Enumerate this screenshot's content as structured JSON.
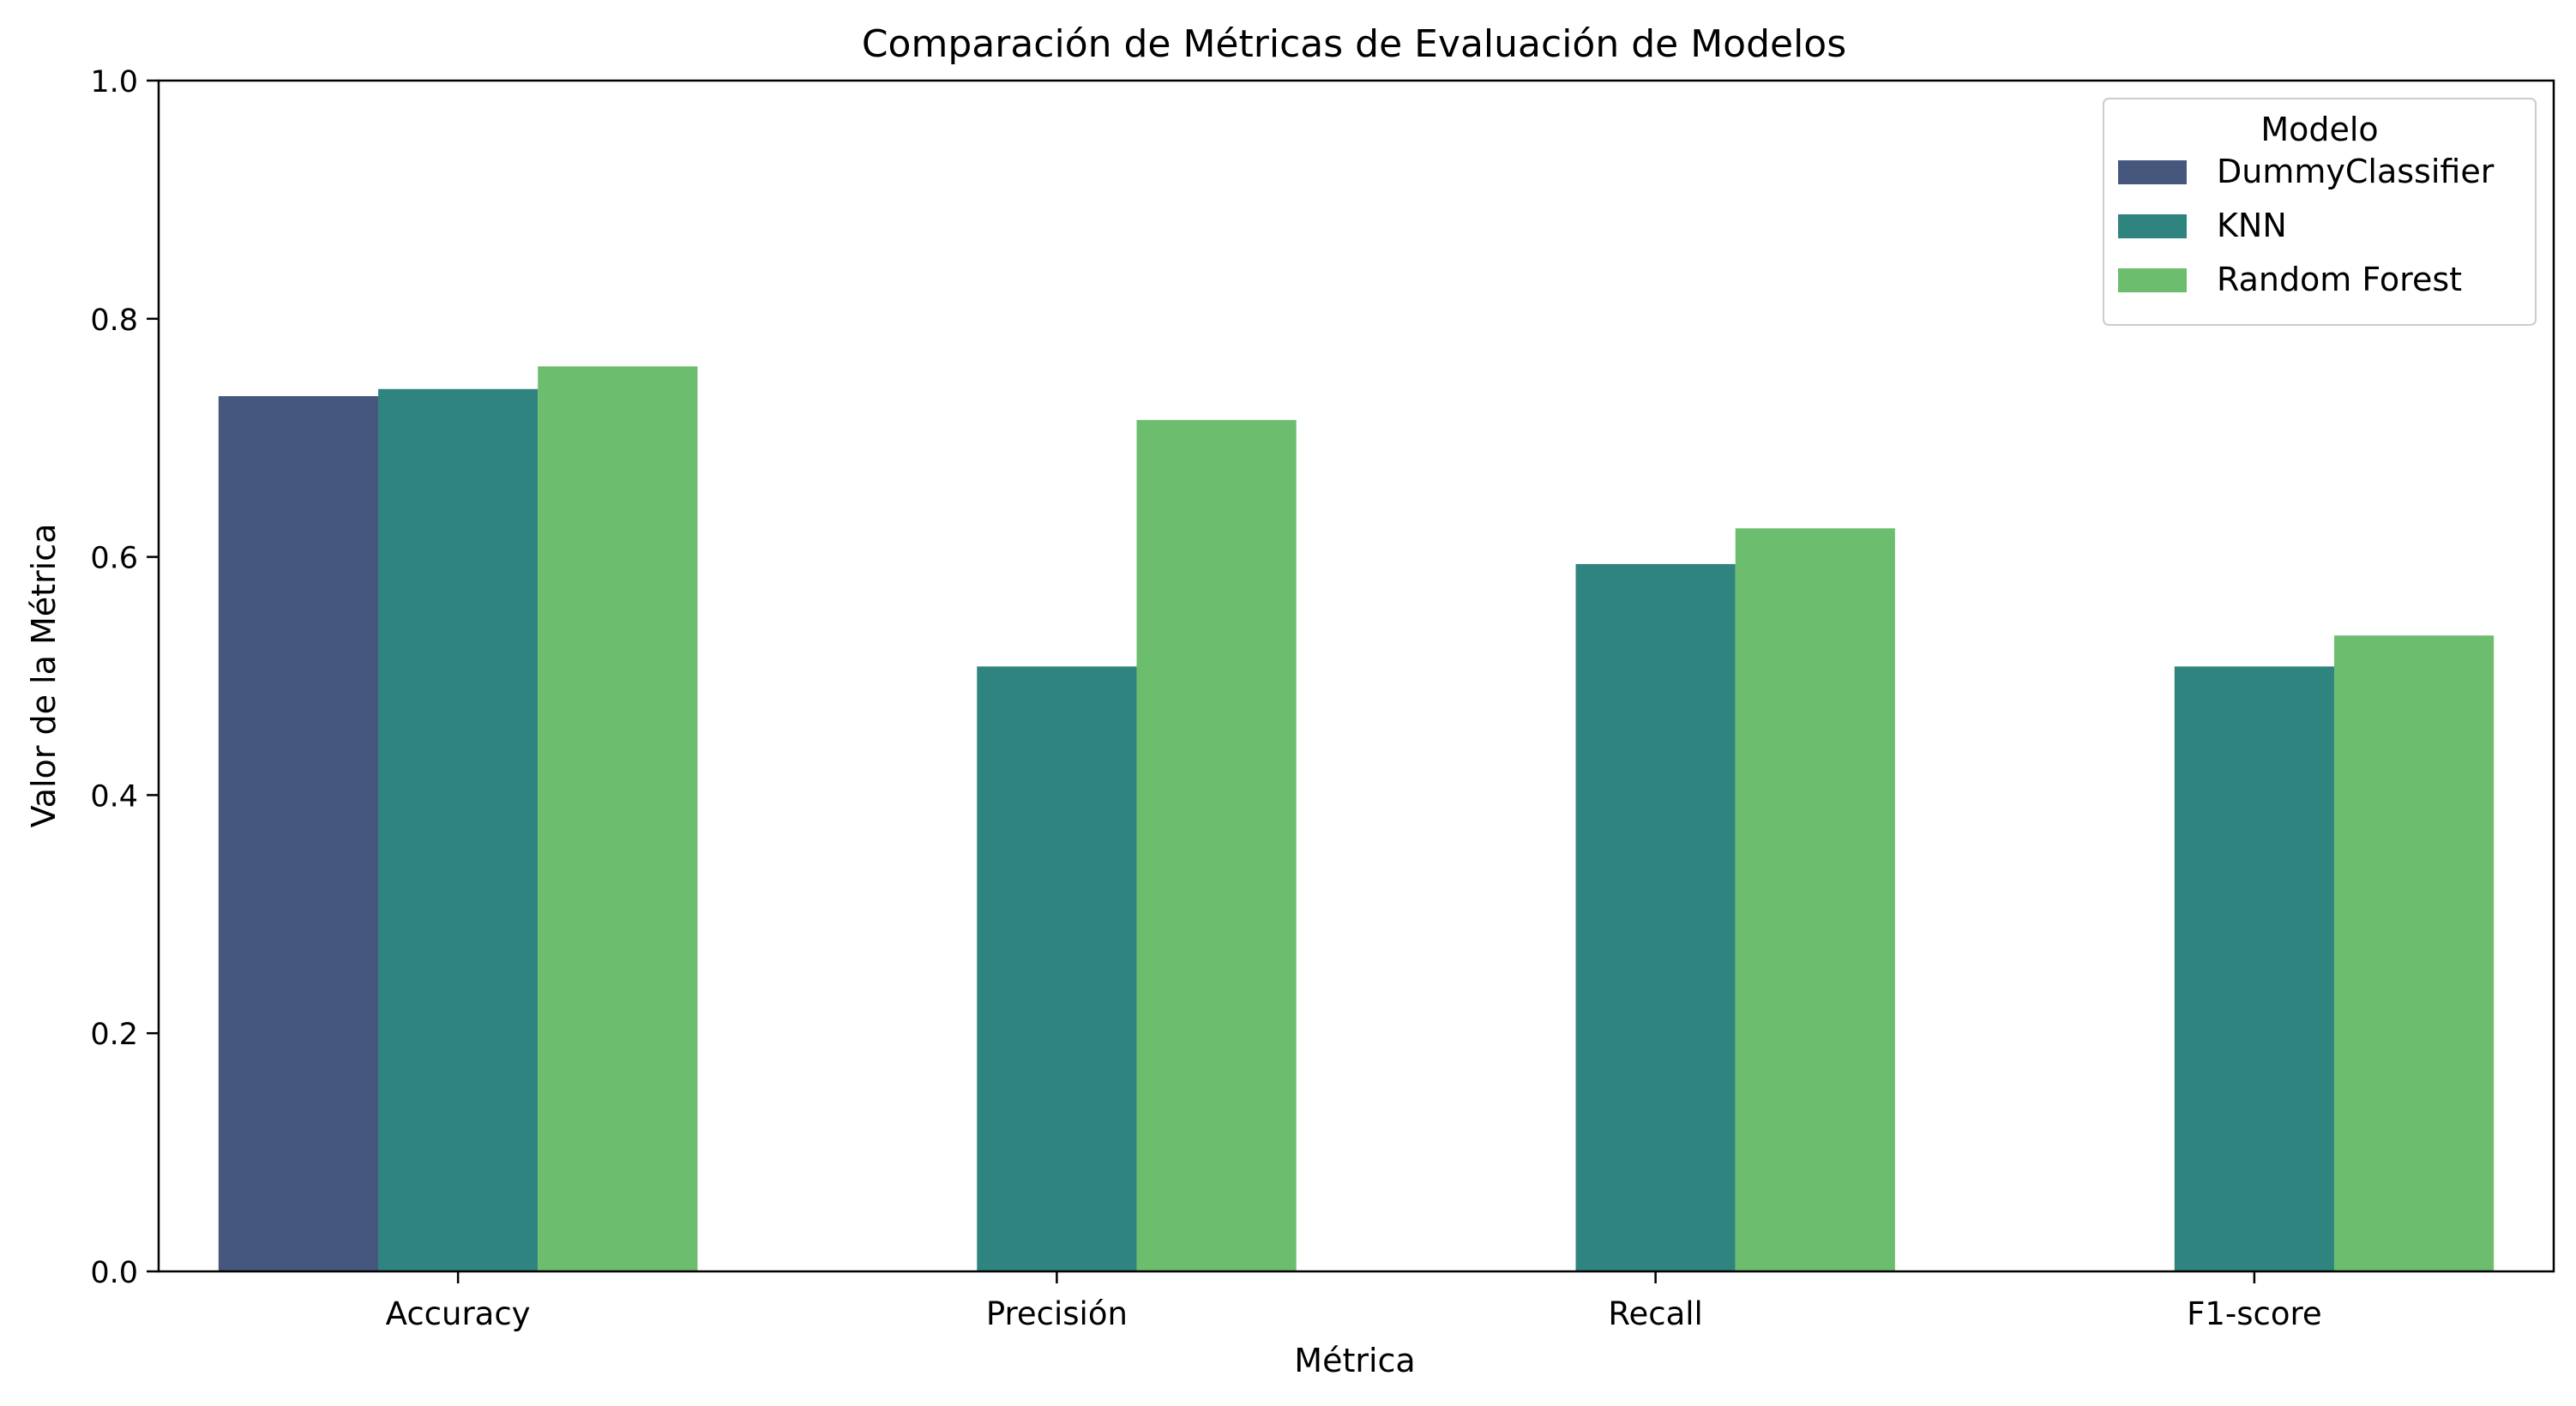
{
  "chart_data": {
    "type": "bar",
    "title": "Comparación de Métricas de Evaluación de Modelos",
    "xlabel": "Métrica",
    "ylabel": "Valor de la Métrica",
    "ylim": [
      0,
      1.0
    ],
    "yticks": [
      "0.0",
      "0.2",
      "0.4",
      "0.6",
      "0.8",
      "1.0"
    ],
    "grid": false,
    "legend": {
      "title": "Modelo",
      "position": "top-right"
    },
    "categories": [
      "Accuracy",
      "Precisión",
      "Recall",
      "F1-score"
    ],
    "series": [
      {
        "name": "DummyClassifier",
        "color": "#46577e",
        "values": [
          0.735,
          0.0,
          0.0,
          0.0
        ]
      },
      {
        "name": "KNN",
        "color": "#2f847f",
        "values": [
          0.741,
          0.508,
          0.594,
          0.508
        ]
      },
      {
        "name": "Random Forest",
        "color": "#6dbd6e",
        "values": [
          0.76,
          0.715,
          0.624,
          0.534
        ]
      }
    ]
  }
}
